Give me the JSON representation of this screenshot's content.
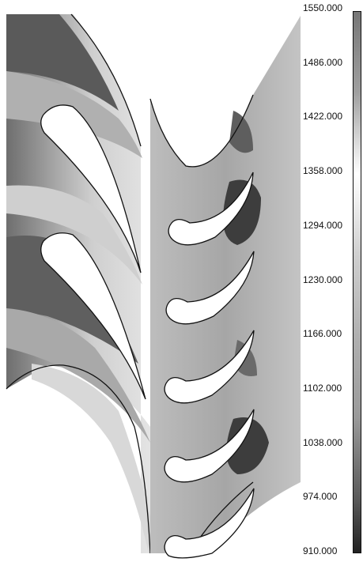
{
  "legend": {
    "levels": [
      "1550.000",
      "1486.000",
      "1422.000",
      "1358.000",
      "1294.000",
      "1230.000",
      "1166.000",
      "1102.000",
      "1038.000",
      "974.000",
      "910.000"
    ]
  },
  "colors": {
    "background": "#ffffff",
    "blade": "#ffffff",
    "outline": "#111111",
    "field_light": "#e2e2e2",
    "field_mid": "#b4b4b4",
    "field_dark": "#4a4a4a"
  }
}
